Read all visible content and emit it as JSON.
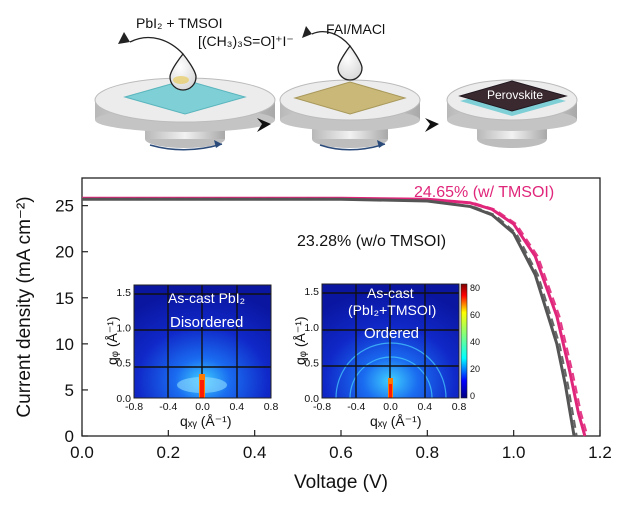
{
  "schematic": {
    "step1_label_line1": "PbI₂ + TMSOI",
    "step1_label_line2": "[(CH₃)₃S=O]⁺I⁻",
    "step2_label": "FAI/MACl",
    "step3_film_label": "Perovskite",
    "colors": {
      "film1": "#7fd0d6",
      "film2": "#c9b878",
      "perovskite": "#3a2a30",
      "stage": "#d9d9d9"
    }
  },
  "chart_data": {
    "type": "line",
    "xlabel": "Voltage (V)",
    "ylabel": "Current density (mA cm⁻²)",
    "xlim": [
      0.0,
      1.2
    ],
    "ylim": [
      0,
      28
    ],
    "xticks": [
      "0.0",
      "0.2",
      "0.4",
      "0.6",
      "0.8",
      "1.0",
      "1.2"
    ],
    "yticks": [
      "0",
      "5",
      "10",
      "15",
      "20",
      "25"
    ],
    "series": [
      {
        "name": "24.65% (w/ TMSOI)",
        "color": "#e0267a",
        "x": [
          0.0,
          0.2,
          0.4,
          0.6,
          0.8,
          0.9,
          0.95,
          1.0,
          1.05,
          1.1,
          1.13,
          1.15,
          1.165
        ],
        "y": [
          25.8,
          25.8,
          25.8,
          25.8,
          25.7,
          25.3,
          24.6,
          23.0,
          19.5,
          13.0,
          7.0,
          2.5,
          0
        ]
      },
      {
        "name": "23.28% (w/o TMSOI)",
        "color": "#555555",
        "x": [
          0.0,
          0.2,
          0.4,
          0.6,
          0.8,
          0.9,
          0.95,
          1.0,
          1.05,
          1.1,
          1.12,
          1.14
        ],
        "y": [
          25.7,
          25.7,
          25.7,
          25.7,
          25.5,
          24.9,
          24.0,
          22.0,
          17.5,
          10.0,
          5.5,
          0
        ]
      }
    ],
    "insets": [
      {
        "title_line1": "As-cast PbI₂",
        "title_line2": "Disordered",
        "xlabel": "qₓᵧ (Å⁻¹)",
        "ylabel": "qᵩ (Å⁻¹)",
        "xticks": [
          "-0.8",
          "-0.4",
          "0.0",
          "0.4",
          "0.8"
        ],
        "yticks": [
          "0.0",
          "0.5",
          "1.0",
          "1.5"
        ]
      },
      {
        "title_line1": "As-cast",
        "title_line2": "(PbI₂+TMSOI)",
        "title_line3": "Ordered",
        "xlabel": "qₓᵧ (Å⁻¹)",
        "ylabel": "qᵩ (Å⁻¹)",
        "xticks": [
          "-0.8",
          "-0.4",
          "0.0",
          "0.4",
          "0.8"
        ],
        "yticks": [
          "0.0",
          "0.5",
          "1.0",
          "1.5"
        ],
        "colorbar_ticks": [
          "80",
          "60",
          "40",
          "20",
          "0"
        ]
      }
    ]
  }
}
